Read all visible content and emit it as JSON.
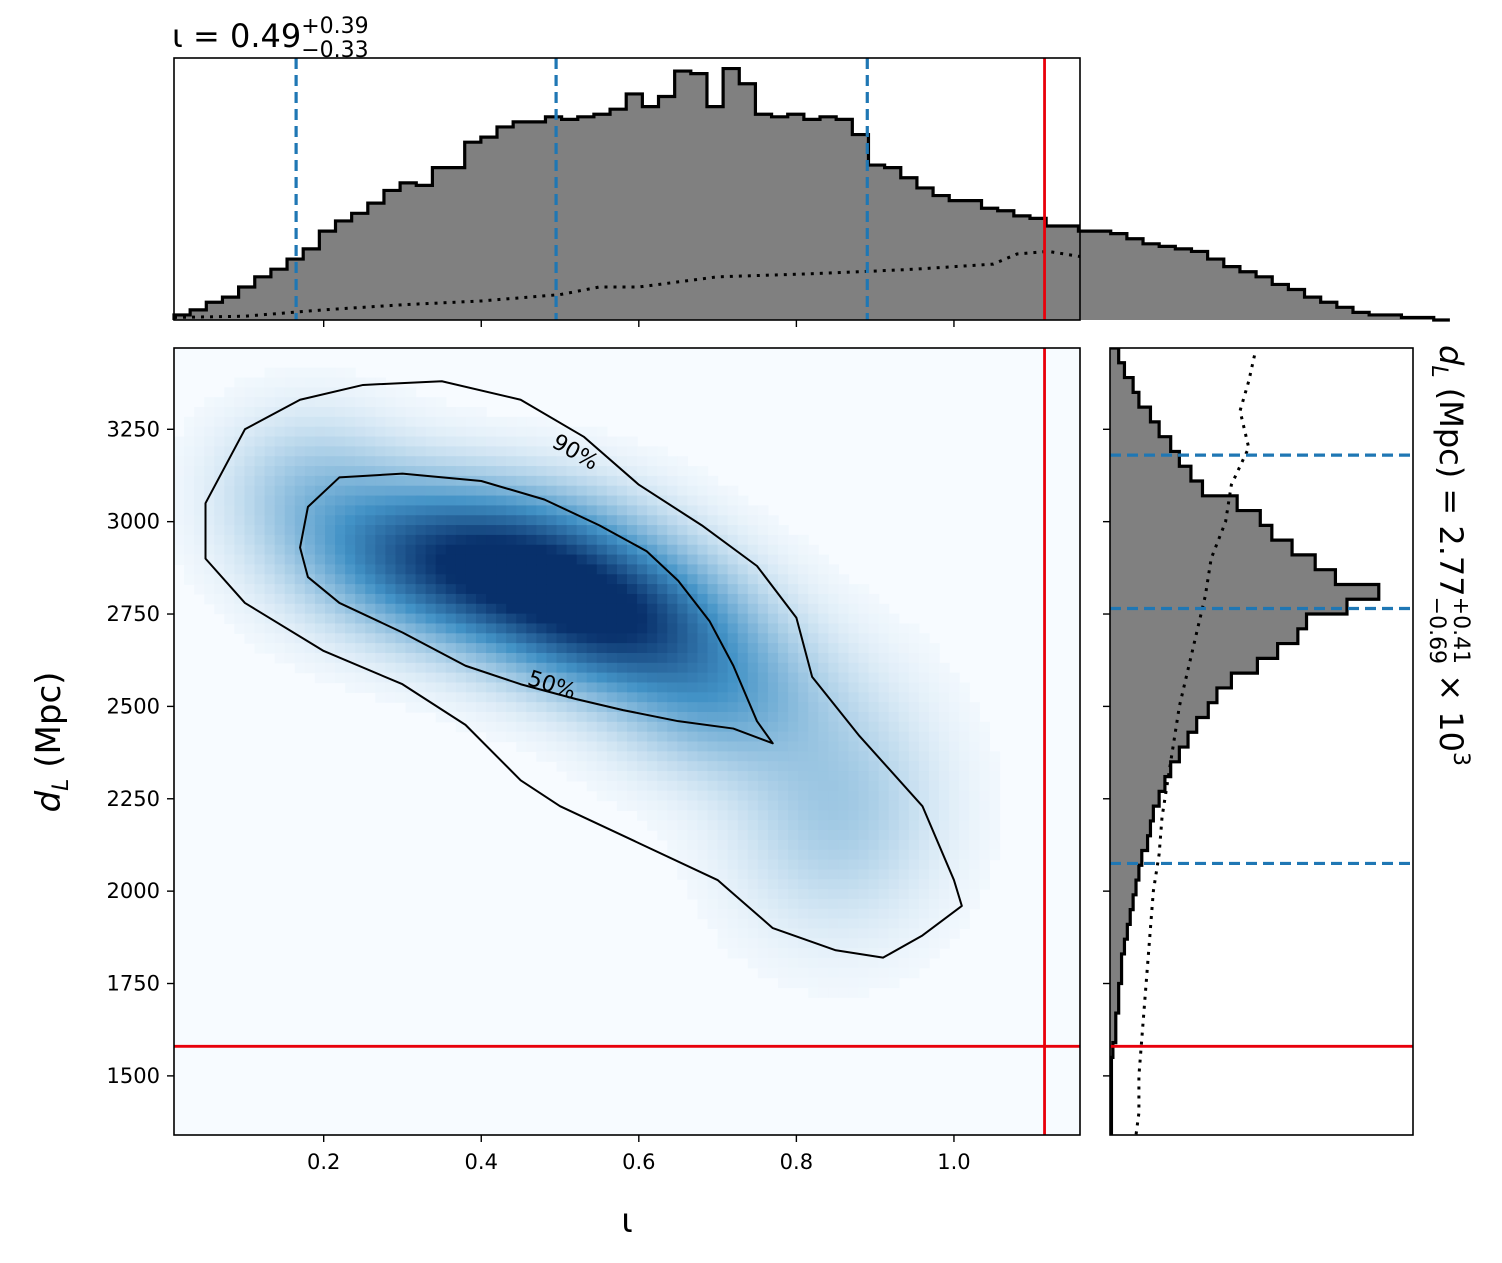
{
  "chart_data": [
    {
      "id": "top",
      "type": "histogram",
      "title": {
        "main": "ι = 0.49",
        "sup": "+0.39",
        "sub": "−0.33"
      },
      "xlim": [
        0.01,
        1.16
      ],
      "x_ticks": [
        0.2,
        0.4,
        0.6,
        0.8,
        1.0
      ],
      "bin_edges_start": 0.01,
      "bin_width": 0.0205,
      "posterior_heights": [
        0.02,
        0.04,
        0.07,
        0.09,
        0.13,
        0.17,
        0.2,
        0.24,
        0.28,
        0.35,
        0.39,
        0.42,
        0.46,
        0.51,
        0.54,
        0.53,
        0.6,
        0.6,
        0.7,
        0.72,
        0.76,
        0.78,
        0.78,
        0.8,
        0.79,
        0.8,
        0.81,
        0.83,
        0.89,
        0.84,
        0.88,
        0.98,
        0.97,
        0.84,
        0.99,
        0.93,
        0.81,
        0.8,
        0.81,
        0.79,
        0.8,
        0.79,
        0.73,
        0.61,
        0.6,
        0.56,
        0.52,
        0.49,
        0.47,
        0.47,
        0.44,
        0.43,
        0.41,
        0.4,
        0.37,
        0.37,
        0.35,
        0.35,
        0.34,
        0.32,
        0.3,
        0.29,
        0.28,
        0.27,
        0.24,
        0.21,
        0.19,
        0.17,
        0.14,
        0.12,
        0.09,
        0.07,
        0.05,
        0.03,
        0.02,
        0.02,
        0.01,
        0.01,
        0.0
      ],
      "prior_points": [
        [
          0.01,
          0.01
        ],
        [
          0.1,
          0.015
        ],
        [
          0.2,
          0.04
        ],
        [
          0.3,
          0.06
        ],
        [
          0.4,
          0.075
        ],
        [
          0.5,
          0.1
        ],
        [
          0.55,
          0.13
        ],
        [
          0.6,
          0.13
        ],
        [
          0.65,
          0.15
        ],
        [
          0.7,
          0.17
        ],
        [
          0.8,
          0.18
        ],
        [
          0.88,
          0.19
        ],
        [
          0.95,
          0.2
        ],
        [
          1.0,
          0.21
        ],
        [
          1.05,
          0.22
        ],
        [
          1.08,
          0.26
        ],
        [
          1.12,
          0.27
        ],
        [
          1.16,
          0.25
        ]
      ],
      "quantile_lines": [
        0.165,
        0.495,
        0.89
      ],
      "truth": 1.115
    },
    {
      "id": "joint",
      "type": "heatmap",
      "xlabel": "ι",
      "ylabel": {
        "main": "d",
        "sub": "L",
        "rest": " (Mpc)"
      },
      "xlim": [
        0.01,
        1.16
      ],
      "ylim": [
        1340,
        3470
      ],
      "x_ticks": [
        0.2,
        0.4,
        0.6,
        0.8,
        1.0
      ],
      "y_ticks": [
        1500,
        1750,
        2000,
        2250,
        2500,
        2750,
        3000,
        3250
      ],
      "contour_90": [
        [
          0.05,
          2900
        ],
        [
          0.05,
          3050
        ],
        [
          0.1,
          3250
        ],
        [
          0.17,
          3330
        ],
        [
          0.25,
          3370
        ],
        [
          0.35,
          3380
        ],
        [
          0.45,
          3330
        ],
        [
          0.53,
          3230
        ],
        [
          0.6,
          3100
        ],
        [
          0.68,
          2990
        ],
        [
          0.75,
          2880
        ],
        [
          0.8,
          2740
        ],
        [
          0.82,
          2580
        ],
        [
          0.88,
          2420
        ],
        [
          0.96,
          2230
        ],
        [
          1.0,
          2030
        ],
        [
          1.01,
          1960
        ],
        [
          0.96,
          1880
        ],
        [
          0.91,
          1820
        ],
        [
          0.85,
          1840
        ],
        [
          0.77,
          1900
        ],
        [
          0.7,
          2030
        ],
        [
          0.6,
          2130
        ],
        [
          0.5,
          2230
        ],
        [
          0.45,
          2300
        ],
        [
          0.38,
          2450
        ],
        [
          0.3,
          2560
        ],
        [
          0.2,
          2650
        ],
        [
          0.1,
          2780
        ],
        [
          0.05,
          2900
        ]
      ],
      "contour_50": [
        [
          0.17,
          2930
        ],
        [
          0.18,
          3040
        ],
        [
          0.22,
          3120
        ],
        [
          0.3,
          3130
        ],
        [
          0.4,
          3110
        ],
        [
          0.48,
          3060
        ],
        [
          0.55,
          2990
        ],
        [
          0.61,
          2920
        ],
        [
          0.65,
          2840
        ],
        [
          0.69,
          2730
        ],
        [
          0.72,
          2610
        ],
        [
          0.75,
          2460
        ],
        [
          0.77,
          2400
        ],
        [
          0.72,
          2440
        ],
        [
          0.65,
          2460
        ],
        [
          0.58,
          2490
        ],
        [
          0.52,
          2520
        ],
        [
          0.45,
          2560
        ],
        [
          0.38,
          2610
        ],
        [
          0.3,
          2700
        ],
        [
          0.22,
          2780
        ],
        [
          0.18,
          2850
        ],
        [
          0.17,
          2930
        ]
      ],
      "labels": [
        {
          "text": "90%",
          "x": 0.52,
          "y": 3190,
          "angle": 30
        },
        {
          "text": "50%",
          "x": 0.49,
          "y": 2560,
          "angle": 18
        }
      ],
      "density_blobs": [
        {
          "x": 0.45,
          "y": 2870,
          "sx": 0.11,
          "sy": 140,
          "w": 1.0
        },
        {
          "x": 0.58,
          "y": 2720,
          "sx": 0.1,
          "sy": 130,
          "w": 0.85
        },
        {
          "x": 0.3,
          "y": 2930,
          "sx": 0.1,
          "sy": 140,
          "w": 0.55
        },
        {
          "x": 0.7,
          "y": 2530,
          "sx": 0.09,
          "sy": 140,
          "w": 0.45
        },
        {
          "x": 0.85,
          "y": 2230,
          "sx": 0.09,
          "sy": 220,
          "w": 0.3
        },
        {
          "x": 0.18,
          "y": 3100,
          "sx": 0.08,
          "sy": 140,
          "w": 0.25
        }
      ],
      "truth": {
        "x": 1.115,
        "y": 1580
      }
    },
    {
      "id": "right",
      "type": "histogram",
      "orientation": "horizontal",
      "ylim": [
        1340,
        3470
      ],
      "y_ticks": [
        1500,
        1750,
        2000,
        2250,
        2500,
        2750,
        3000,
        3250
      ],
      "label": {
        "main": "d",
        "sub_l": "L",
        "mid": " (Mpc) = 2.77",
        "sup": "+0.41",
        "sub": "−0.69",
        "tail": " × 10",
        "exp": "3"
      },
      "bins": [
        [
          3430,
          3470,
          0.03
        ],
        [
          3390,
          3430,
          0.05
        ],
        [
          3350,
          3390,
          0.08
        ],
        [
          3310,
          3350,
          0.1
        ],
        [
          3270,
          3310,
          0.14
        ],
        [
          3230,
          3270,
          0.17
        ],
        [
          3190,
          3230,
          0.21
        ],
        [
          3150,
          3190,
          0.24
        ],
        [
          3110,
          3150,
          0.28
        ],
        [
          3070,
          3110,
          0.32
        ],
        [
          3030,
          3070,
          0.44
        ],
        [
          2990,
          3030,
          0.52
        ],
        [
          2950,
          2990,
          0.56
        ],
        [
          2910,
          2950,
          0.63
        ],
        [
          2870,
          2910,
          0.71
        ],
        [
          2830,
          2870,
          0.78
        ],
        [
          2790,
          2830,
          0.93
        ],
        [
          2750,
          2790,
          0.82
        ],
        [
          2710,
          2750,
          0.68
        ],
        [
          2670,
          2710,
          0.65
        ],
        [
          2630,
          2670,
          0.58
        ],
        [
          2590,
          2630,
          0.51
        ],
        [
          2550,
          2590,
          0.42
        ],
        [
          2510,
          2550,
          0.37
        ],
        [
          2470,
          2510,
          0.34
        ],
        [
          2430,
          2470,
          0.3
        ],
        [
          2390,
          2430,
          0.27
        ],
        [
          2350,
          2390,
          0.24
        ],
        [
          2310,
          2350,
          0.21
        ],
        [
          2270,
          2310,
          0.19
        ],
        [
          2230,
          2270,
          0.17
        ],
        [
          2190,
          2230,
          0.15
        ],
        [
          2150,
          2190,
          0.14
        ],
        [
          2110,
          2150,
          0.13
        ],
        [
          2070,
          2110,
          0.11
        ],
        [
          2030,
          2070,
          0.1
        ],
        [
          1990,
          2030,
          0.09
        ],
        [
          1950,
          1990,
          0.08
        ],
        [
          1910,
          1950,
          0.07
        ],
        [
          1870,
          1910,
          0.06
        ],
        [
          1830,
          1870,
          0.05
        ],
        [
          1790,
          1830,
          0.04
        ],
        [
          1750,
          1790,
          0.04
        ],
        [
          1710,
          1750,
          0.03
        ],
        [
          1670,
          1710,
          0.03
        ],
        [
          1630,
          1670,
          0.02
        ],
        [
          1590,
          1630,
          0.02
        ],
        [
          1550,
          1590,
          0.01
        ],
        [
          1340,
          1550,
          0.005
        ]
      ],
      "prior_points": [
        [
          3450,
          0.5
        ],
        [
          3380,
          0.48
        ],
        [
          3300,
          0.45
        ],
        [
          3200,
          0.48
        ],
        [
          3100,
          0.42
        ],
        [
          3000,
          0.4
        ],
        [
          2900,
          0.35
        ],
        [
          2800,
          0.33
        ],
        [
          2700,
          0.3
        ],
        [
          2600,
          0.27
        ],
        [
          2500,
          0.24
        ],
        [
          2400,
          0.22
        ],
        [
          2300,
          0.2
        ],
        [
          2200,
          0.18
        ],
        [
          2100,
          0.17
        ],
        [
          2000,
          0.15
        ],
        [
          1900,
          0.14
        ],
        [
          1800,
          0.13
        ],
        [
          1700,
          0.12
        ],
        [
          1600,
          0.11
        ],
        [
          1500,
          0.1
        ],
        [
          1400,
          0.1
        ],
        [
          1340,
          0.09
        ]
      ],
      "quantile_lines": [
        3180,
        2765,
        2075
      ],
      "truth": 1580
    }
  ],
  "colors": {
    "histogram_fill": "#808080",
    "quantile": "#1f77b4",
    "truth": "#e8000b",
    "density_high": "#08306b",
    "density_low": "#f7fbff"
  }
}
